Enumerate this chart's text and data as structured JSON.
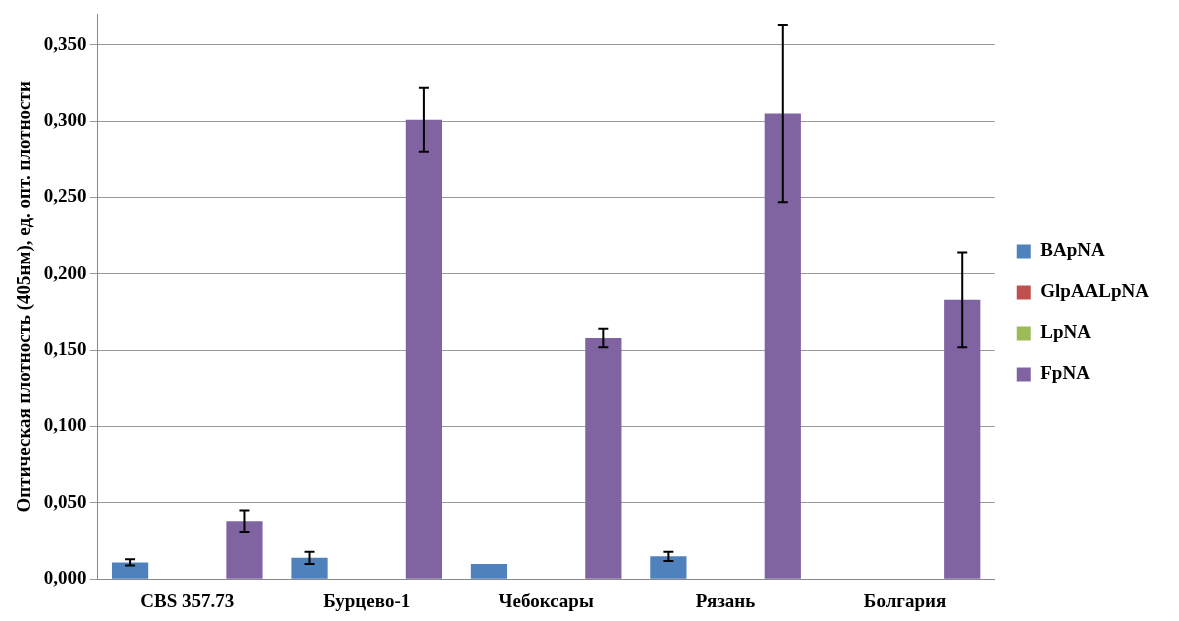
{
  "chart_data": {
    "type": "bar",
    "ylabel": "Оптическая плотность (405нм), ед. опт. плотности",
    "categories": [
      "CBS 357.73",
      "Бурцево-1",
      "Чебоксары",
      "Рязань",
      "Болгария"
    ],
    "series": [
      {
        "name": "BApNA",
        "color": "#4f81bd",
        "values": [
          0.011,
          0.014,
          0.01,
          0.015,
          0
        ],
        "errors": [
          0.002,
          0.004,
          null,
          0.003,
          null
        ]
      },
      {
        "name": "GlpAALpNA",
        "color": "#c0504d",
        "values": [
          0,
          0,
          0,
          0,
          0
        ]
      },
      {
        "name": "LpNA",
        "color": "#9bbb59",
        "values": [
          0,
          0,
          0,
          0,
          0
        ]
      },
      {
        "name": "FpNA",
        "color": "#8064a2",
        "values": [
          0.038,
          0.301,
          0.158,
          0.305,
          0.183
        ],
        "errors": [
          0.007,
          0.021,
          0.006,
          0.058,
          0.031
        ]
      }
    ],
    "ylim": [
      0,
      0.37
    ],
    "yticks": [
      {
        "value": 0,
        "label": "0,000"
      },
      {
        "value": 0.05,
        "label": "0,050"
      },
      {
        "value": 0.1,
        "label": "0,100"
      },
      {
        "value": 0.15,
        "label": "0,150"
      },
      {
        "value": 0.2,
        "label": "0,200"
      },
      {
        "value": 0.25,
        "label": "0,250"
      },
      {
        "value": 0.3,
        "label": "0,300"
      },
      {
        "value": 0.35,
        "label": "0,350"
      }
    ],
    "grid": "y",
    "legend": "right"
  }
}
